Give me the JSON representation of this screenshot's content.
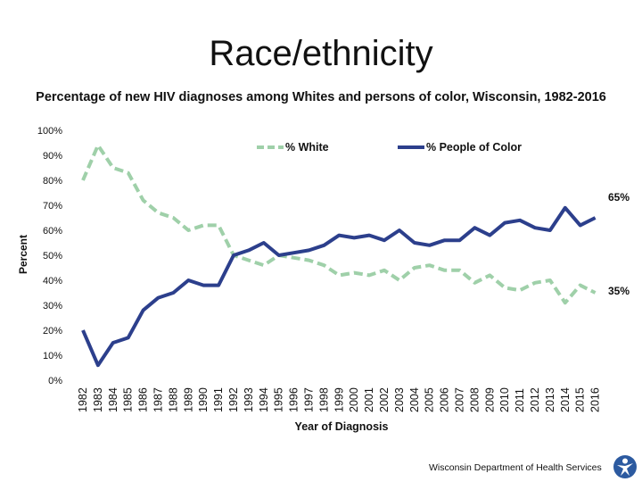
{
  "header": {
    "title": "Race/ethnicity",
    "subtitle": "Percentage of new HIV diagnoses among Whites and persons of color, Wisconsin, 1982-2016"
  },
  "footer": {
    "source": "Wisconsin Department of Health Services"
  },
  "colors": {
    "white_series": "#9fd0a9",
    "poc_series": "#2c3f8c",
    "text": "#111111"
  },
  "chart_data": {
    "type": "line",
    "title": "Percentage of new HIV diagnoses among Whites and persons of color, Wisconsin, 1982-2016",
    "xlabel": "Year of Diagnosis",
    "ylabel": "Percent",
    "ylim": [
      0,
      100
    ],
    "yticks": [
      0,
      10,
      20,
      30,
      40,
      50,
      60,
      70,
      80,
      90,
      100
    ],
    "ytick_labels": [
      "0%",
      "10%",
      "20%",
      "30%",
      "40%",
      "50%",
      "60%",
      "70%",
      "80%",
      "90%",
      "100%"
    ],
    "grid": false,
    "legend_position": "top",
    "categories": [
      "1982",
      "1983",
      "1984",
      "1985",
      "1986",
      "1987",
      "1988",
      "1989",
      "1990",
      "1991",
      "1992",
      "1993",
      "1994",
      "1995",
      "1996",
      "1997",
      "1998",
      "1999",
      "2000",
      "2001",
      "2002",
      "2003",
      "2004",
      "2005",
      "2006",
      "2007",
      "2008",
      "2009",
      "2010",
      "2011",
      "2012",
      "2013",
      "2014",
      "2015",
      "2016"
    ],
    "series": [
      {
        "name": "% White",
        "style": "dashed",
        "values": [
          80,
          94,
          85,
          83,
          72,
          67,
          65,
          60,
          62,
          62,
          50,
          48,
          46,
          50,
          49,
          48,
          46,
          42,
          43,
          42,
          44,
          40,
          45,
          46,
          44,
          44,
          39,
          42,
          37,
          36,
          39,
          40,
          31,
          38,
          35
        ],
        "end_label": "35%"
      },
      {
        "name": "% People of Color",
        "style": "solid",
        "values": [
          20,
          6,
          15,
          17,
          28,
          33,
          35,
          40,
          38,
          38,
          50,
          52,
          55,
          50,
          51,
          52,
          54,
          58,
          57,
          58,
          56,
          60,
          55,
          54,
          56,
          56,
          61,
          58,
          63,
          64,
          61,
          60,
          69,
          62,
          65
        ],
        "end_label": "65%"
      }
    ]
  }
}
